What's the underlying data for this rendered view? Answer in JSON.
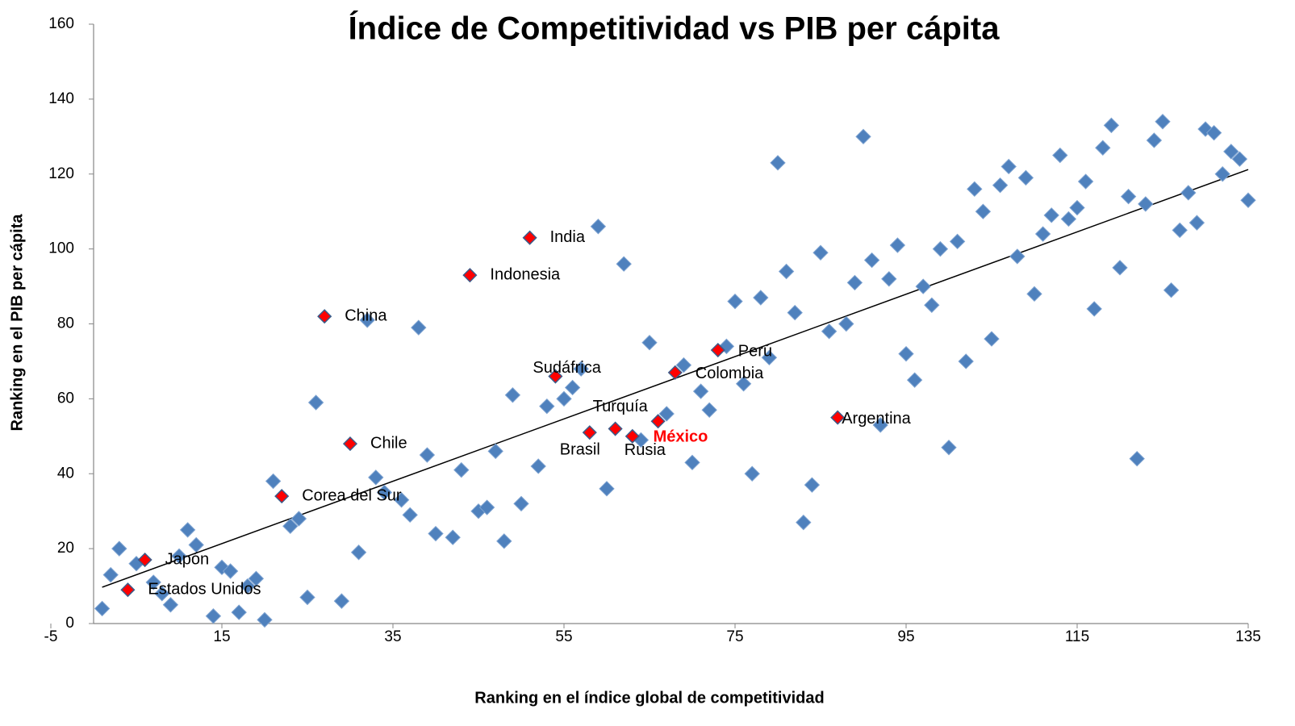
{
  "chart_data": {
    "type": "scatter",
    "title": "Índice de Competitividad vs PIB per cápita",
    "x_label": "Ranking en el índice global de competitividad",
    "y_label": "Ranking en el PIB per cápita",
    "xlim": [
      -5,
      135
    ],
    "xticks": [
      -5,
      15,
      35,
      55,
      75,
      95,
      115,
      135
    ],
    "ylim": [
      0,
      160
    ],
    "yticks": [
      0,
      20,
      40,
      60,
      80,
      100,
      120,
      140,
      160
    ],
    "grid": false,
    "points": {
      "color": "#4f81bd",
      "x": [
        1,
        2,
        3,
        5,
        7,
        8,
        9,
        10,
        11,
        12,
        14,
        15,
        16,
        17,
        18,
        19,
        20,
        21,
        23,
        24,
        25,
        26,
        29,
        31,
        32,
        33,
        34,
        36,
        37,
        38,
        39,
        40,
        42,
        43,
        45,
        46,
        47,
        48,
        49,
        50,
        52,
        53,
        55,
        56,
        57,
        59,
        60,
        62,
        64,
        65,
        67,
        69,
        70,
        71,
        72,
        74,
        75,
        76,
        77,
        78,
        79,
        80,
        81,
        82,
        83,
        84,
        85,
        86,
        88,
        89,
        90,
        91,
        92,
        93,
        94,
        95,
        96,
        97,
        98,
        99,
        100,
        101,
        102,
        103,
        104,
        105,
        106,
        107,
        108,
        109,
        110,
        111,
        112,
        113,
        114,
        115,
        116,
        117,
        118,
        119,
        120,
        121,
        122,
        123,
        124,
        125,
        126,
        127,
        128,
        129,
        130,
        131,
        132,
        133,
        134,
        135
      ],
      "y": [
        4,
        13,
        20,
        16,
        11,
        8,
        5,
        18,
        25,
        21,
        2,
        15,
        14,
        3,
        10,
        12,
        1,
        38,
        26,
        28,
        7,
        59,
        6,
        19,
        81,
        39,
        35,
        33,
        29,
        79,
        45,
        24,
        23,
        41,
        30,
        31,
        46,
        22,
        61,
        32,
        42,
        58,
        60,
        63,
        68,
        106,
        36,
        96,
        49,
        75,
        56,
        69,
        43,
        62,
        57,
        74,
        86,
        64,
        40,
        87,
        71,
        123,
        94,
        83,
        27,
        37,
        99,
        78,
        80,
        91,
        130,
        97,
        53,
        92,
        101,
        72,
        65,
        90,
        85,
        100,
        47,
        102,
        70,
        116,
        110,
        76,
        117,
        122,
        98,
        119,
        88,
        104,
        109,
        125,
        108,
        111,
        118,
        84,
        127,
        133,
        95,
        114,
        44,
        112,
        129,
        134,
        89,
        105,
        115,
        107,
        132,
        131,
        120,
        126,
        124,
        113
      ]
    },
    "highlighted": {
      "color": "#ff0000",
      "labels": [
        "Estados Unidos",
        "Japón",
        "Corea del Sur",
        "China",
        "Chile",
        "Indonesia",
        "India",
        "Sudáfrica",
        "Brasil",
        "Turquía",
        "Rusia",
        "México",
        "Colombia",
        "Perú",
        "Argentina"
      ],
      "x": [
        4,
        6,
        22,
        27,
        30,
        44,
        51,
        54,
        58,
        61,
        63,
        66,
        68,
        73,
        87
      ],
      "y": [
        9,
        17,
        34,
        82,
        48,
        93,
        103,
        66,
        51,
        52,
        50,
        54,
        67,
        73,
        55
      ]
    },
    "trendline": {
      "color": "#000000",
      "x": [
        1,
        135
      ],
      "y": [
        9.7,
        121.2
      ]
    }
  }
}
